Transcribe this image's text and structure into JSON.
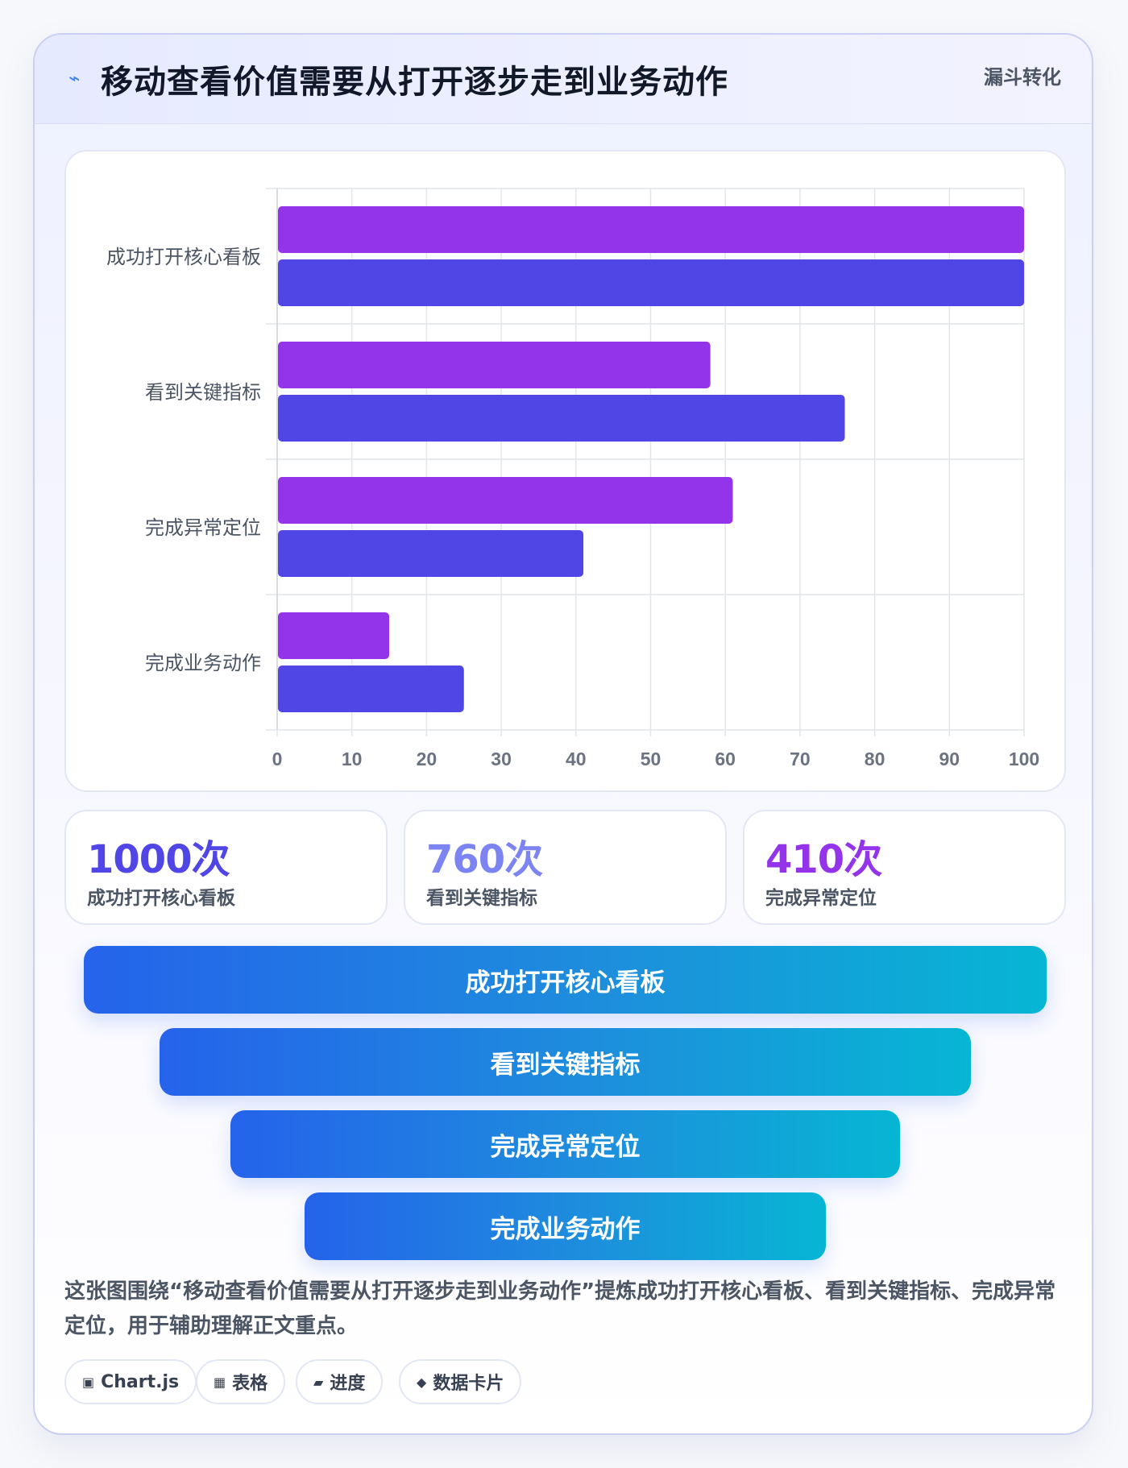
{
  "header": {
    "icon": "lightning-icon",
    "title": "移动查看价值需要从打开逐步走到业务动作",
    "tag": "漏斗转化"
  },
  "chart_data": {
    "type": "bar",
    "orientation": "horizontal",
    "categories": [
      "成功打开核心看板",
      "看到关键指标",
      "完成异常定位",
      "完成业务动作"
    ],
    "series": [
      {
        "values": [
          100,
          58,
          61,
          15
        ],
        "color": "#9333ea"
      },
      {
        "values": [
          100,
          76,
          41,
          25
        ],
        "color": "#4f46e5"
      }
    ],
    "xlim": [
      0,
      100
    ],
    "xticks": [
      0,
      10,
      20,
      30,
      40,
      50,
      60,
      70,
      80,
      90,
      100
    ],
    "grid": true,
    "legend": "none"
  },
  "stats": [
    {
      "value": "1000次",
      "label": "成功打开核心看板",
      "color": "#4f46e5"
    },
    {
      "value": "760次",
      "label": "看到关键指标",
      "color": "#7c83f2"
    },
    {
      "value": "410次",
      "label": "完成异常定位",
      "color": "#9333ea"
    }
  ],
  "funnel": [
    "成功打开核心看板",
    "看到关键指标",
    "完成异常定位",
    "完成业务动作"
  ],
  "description": "这张图围绕“移动查看价值需要从打开逐步走到业务动作”提炼成功打开核心看板、看到关键指标、完成异常定位，用于辅助理解正文重点。",
  "pills": [
    {
      "icon": "chart-icon",
      "glyph": "▣",
      "label": "Chart.js"
    },
    {
      "icon": "table-icon",
      "glyph": "▦",
      "label": "表格"
    },
    {
      "icon": "progress-icon",
      "glyph": "▰",
      "label": "进度"
    },
    {
      "icon": "data-card-icon",
      "glyph": "◆",
      "label": "数据卡片"
    }
  ]
}
